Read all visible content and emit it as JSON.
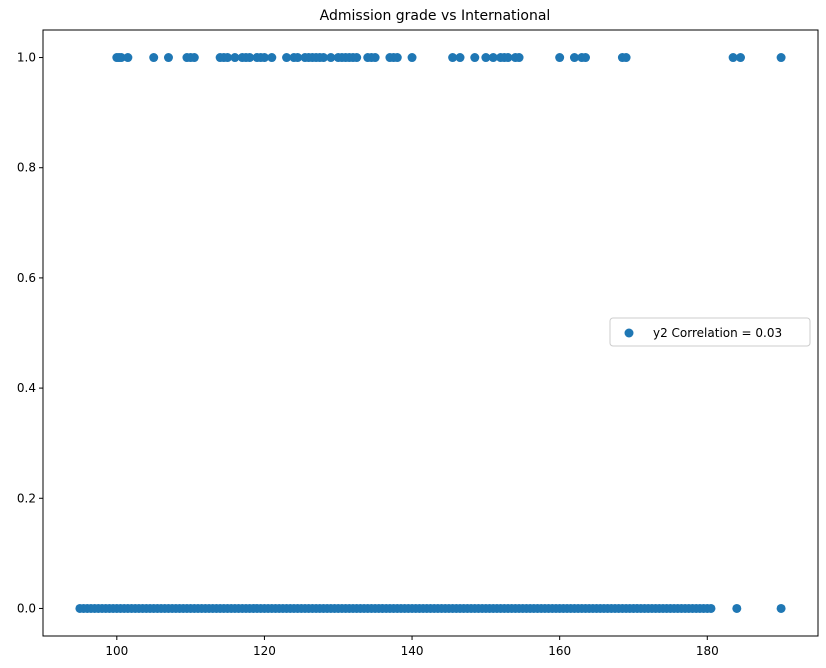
{
  "chart_data": {
    "type": "scatter",
    "title": "Admission grade vs International",
    "xlabel": "",
    "ylabel": "",
    "xlim": [
      90,
      195
    ],
    "ylim": [
      -0.05,
      1.05
    ],
    "xticks": [
      100,
      120,
      140,
      160,
      180
    ],
    "yticks": [
      0.0,
      0.2,
      0.4,
      0.6,
      0.8,
      1.0
    ],
    "xtick_labels": [
      "100",
      "120",
      "140",
      "160",
      "180"
    ],
    "ytick_labels": [
      "0.0",
      "0.2",
      "0.4",
      "0.6",
      "0.8",
      "1.0"
    ],
    "grid": false,
    "legend_position": "center-right",
    "colors": {
      "marker": "#1f77b4"
    },
    "series": [
      {
        "name": "y2 Correlation = 0.03",
        "x_values_at_y1": [
          100,
          100.3,
          100.6,
          101.5,
          105,
          107,
          109.5,
          110,
          110.5,
          114,
          114.5,
          115,
          116,
          117,
          117.5,
          118,
          119,
          119.5,
          120,
          121,
          123,
          124,
          124.5,
          125.5,
          126,
          126.5,
          127,
          127.5,
          128,
          129,
          130,
          130.5,
          131,
          131.5,
          132,
          132.5,
          134,
          134.5,
          135,
          137,
          137.5,
          138,
          140,
          145.5,
          146.5,
          148.5,
          150,
          151,
          152,
          152.5,
          153,
          154,
          154.5,
          160,
          162,
          163,
          163.5,
          168.5,
          169,
          183.5,
          184.5,
          190
        ],
        "x_values_at_y0": "dense from 95 to 180.5, plus 184 and 190"
      }
    ]
  }
}
